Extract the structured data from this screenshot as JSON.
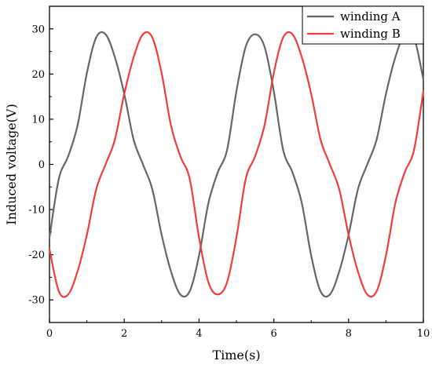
{
  "chart_data": {
    "type": "line",
    "title": "",
    "xlabel": "Time(s)",
    "ylabel": "Induced voltage(V)",
    "xlim": [
      0,
      10
    ],
    "ylim": [
      -35,
      35
    ],
    "x_ticks": [
      0,
      2,
      4,
      6,
      8,
      10
    ],
    "y_ticks": [
      -30,
      -20,
      -10,
      0,
      10,
      20,
      30
    ],
    "grid": false,
    "legend_position": "top-right",
    "series": [
      {
        "name": "winding A",
        "color": "#666666",
        "x": [
          0,
          0.25,
          0.5,
          0.75,
          1.0,
          1.25,
          1.5,
          1.75,
          2.0,
          2.25,
          2.5,
          2.75,
          3.0,
          3.25,
          3.5,
          3.75,
          4.0,
          4.25,
          4.5,
          4.75,
          5.0,
          5.25,
          5.5,
          5.75,
          6.0,
          6.25,
          6.5,
          6.75,
          7.0,
          7.25,
          7.5,
          7.75,
          8.0,
          8.25,
          8.5,
          8.75,
          9.0,
          9.25,
          9.5,
          9.75,
          10.0
        ],
        "y": [
          -16.2,
          -3.2,
          1.8,
          8.6,
          20.2,
          28.1,
          28.8,
          23.7,
          15.6,
          5.5,
          0.0,
          -5.5,
          -15.6,
          -23.7,
          -28.8,
          -28.1,
          -20.2,
          -8.6,
          -1.8,
          3.2,
          16.2,
          26.1,
          28.8,
          26.1,
          16.2,
          3.2,
          -1.8,
          -8.6,
          -20.2,
          -28.1,
          -28.8,
          -23.7,
          -15.6,
          -5.5,
          0.0,
          5.5,
          15.6,
          23.7,
          28.8,
          28.1,
          18.8
        ]
      },
      {
        "name": "winding B",
        "color": "#f03c3c",
        "x": [
          0,
          0.25,
          0.5,
          0.75,
          1.0,
          1.25,
          1.5,
          1.75,
          2.0,
          2.25,
          2.5,
          2.75,
          3.0,
          3.25,
          3.5,
          3.75,
          4.0,
          4.25,
          4.5,
          4.75,
          5.0,
          5.25,
          5.5,
          5.75,
          6.0,
          6.25,
          6.5,
          6.75,
          7.0,
          7.25,
          7.5,
          7.75,
          8.0,
          8.25,
          8.5,
          8.75,
          9.0,
          9.25,
          9.5,
          9.75,
          10.0
        ],
        "y": [
          -18.8,
          -28.1,
          -28.8,
          -23.7,
          -15.6,
          -5.5,
          0.0,
          5.5,
          15.6,
          23.7,
          28.8,
          28.1,
          20.2,
          8.6,
          1.8,
          -3.2,
          -16.2,
          -26.1,
          -28.8,
          -26.1,
          -16.2,
          -3.2,
          1.8,
          8.6,
          20.2,
          28.1,
          28.8,
          23.7,
          15.6,
          5.5,
          0.0,
          -5.5,
          -15.6,
          -23.7,
          -28.8,
          -28.1,
          -20.2,
          -8.6,
          -1.8,
          3.2,
          16.2
        ]
      }
    ]
  }
}
